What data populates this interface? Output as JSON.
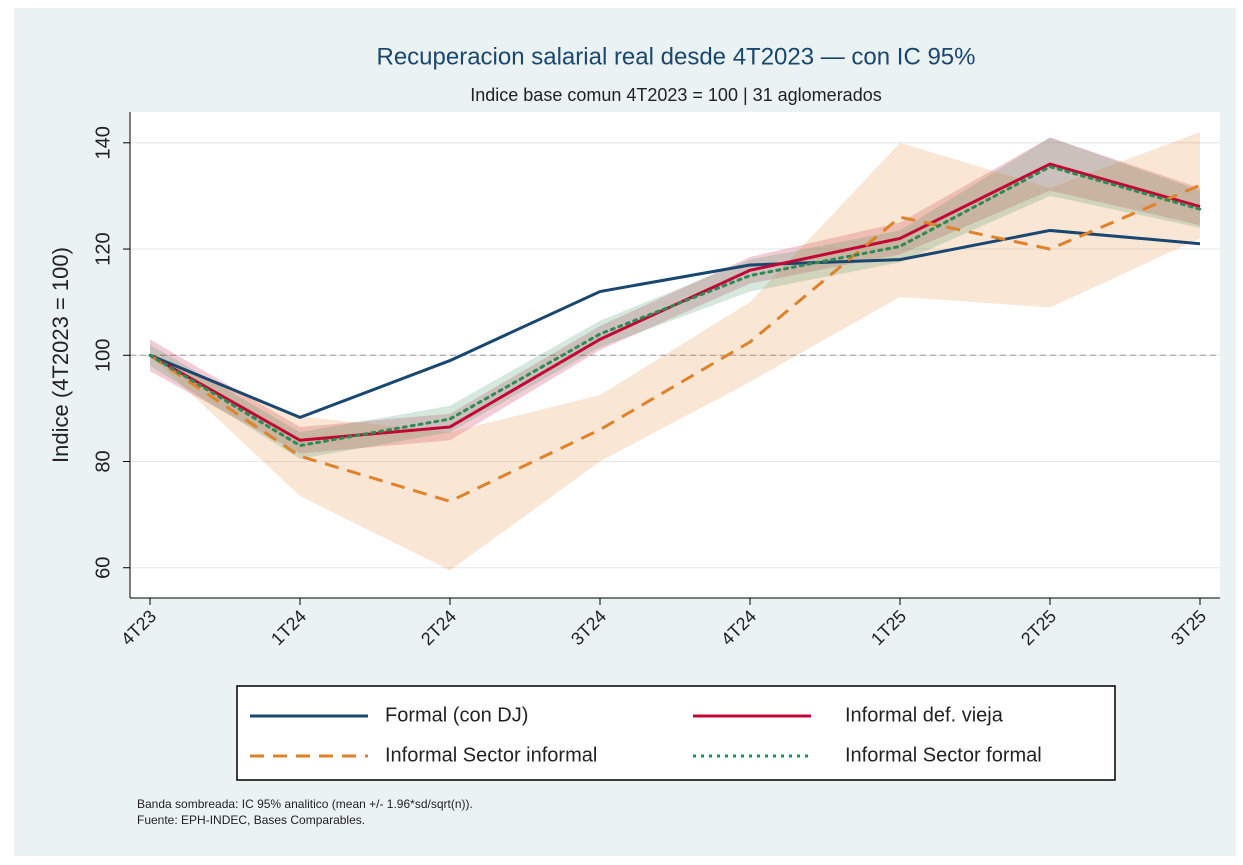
{
  "chart_data": {
    "type": "line",
    "title": "Recuperacion salarial real desde 4T2023 — con IC 95%",
    "subtitle": "Indice base comun 4T2023 = 100 | 31 aglomerados",
    "y_label": "Indice (4T2023 = 100)",
    "categories": [
      "4T23",
      "1T24",
      "2T24",
      "3T24",
      "4T24",
      "1T25",
      "2T25",
      "3T25"
    ],
    "ylim": [
      54.3,
      145.8
    ],
    "yticks": [
      60,
      80,
      100,
      120,
      140
    ],
    "grid": true,
    "reference_line": 100,
    "series": [
      {
        "name": "Formal (con DJ)",
        "color": "#1a476f",
        "style": "solid",
        "values": [
          100,
          88.3,
          99,
          112,
          117,
          118,
          123.5,
          121
        ]
      },
      {
        "name": "Informal def. vieja",
        "color": "#c10534",
        "style": "solid",
        "values": [
          100,
          84,
          86.5,
          103,
          116,
          122,
          136,
          128
        ],
        "ci_lower": [
          97,
          81.5,
          84,
          101,
          113.5,
          119,
          131,
          124.5
        ],
        "ci_upper": [
          103,
          86.5,
          89,
          105.5,
          118.5,
          125,
          141,
          131.5
        ]
      },
      {
        "name": "Informal Sector informal",
        "color": "#e0822a",
        "style": "dash",
        "values": [
          100,
          81,
          72.5,
          86,
          102.5,
          126,
          120,
          132
        ],
        "ci_lower": [
          100,
          73.5,
          59.5,
          80,
          95,
          111,
          109,
          122
        ],
        "ci_upper": [
          100,
          88.5,
          85.5,
          92.5,
          110,
          140,
          131.5,
          142
        ]
      },
      {
        "name": "Informal Sector formal",
        "color": "#2e8b57",
        "style": "dot",
        "values": [
          100,
          83,
          88,
          104,
          115,
          120.5,
          135.5,
          127.5
        ],
        "ci_lower": [
          98,
          80.5,
          85.5,
          101.5,
          112,
          117.5,
          130,
          124
        ],
        "ci_upper": [
          102,
          85.5,
          90.5,
          106.5,
          118,
          123.5,
          141,
          131
        ]
      }
    ],
    "notes": [
      "Banda sombreada: IC 95% analitico (mean +/- 1.96*sd/sqrt(n)).",
      "Fuente: EPH-INDEC, Bases Comparables."
    ]
  }
}
